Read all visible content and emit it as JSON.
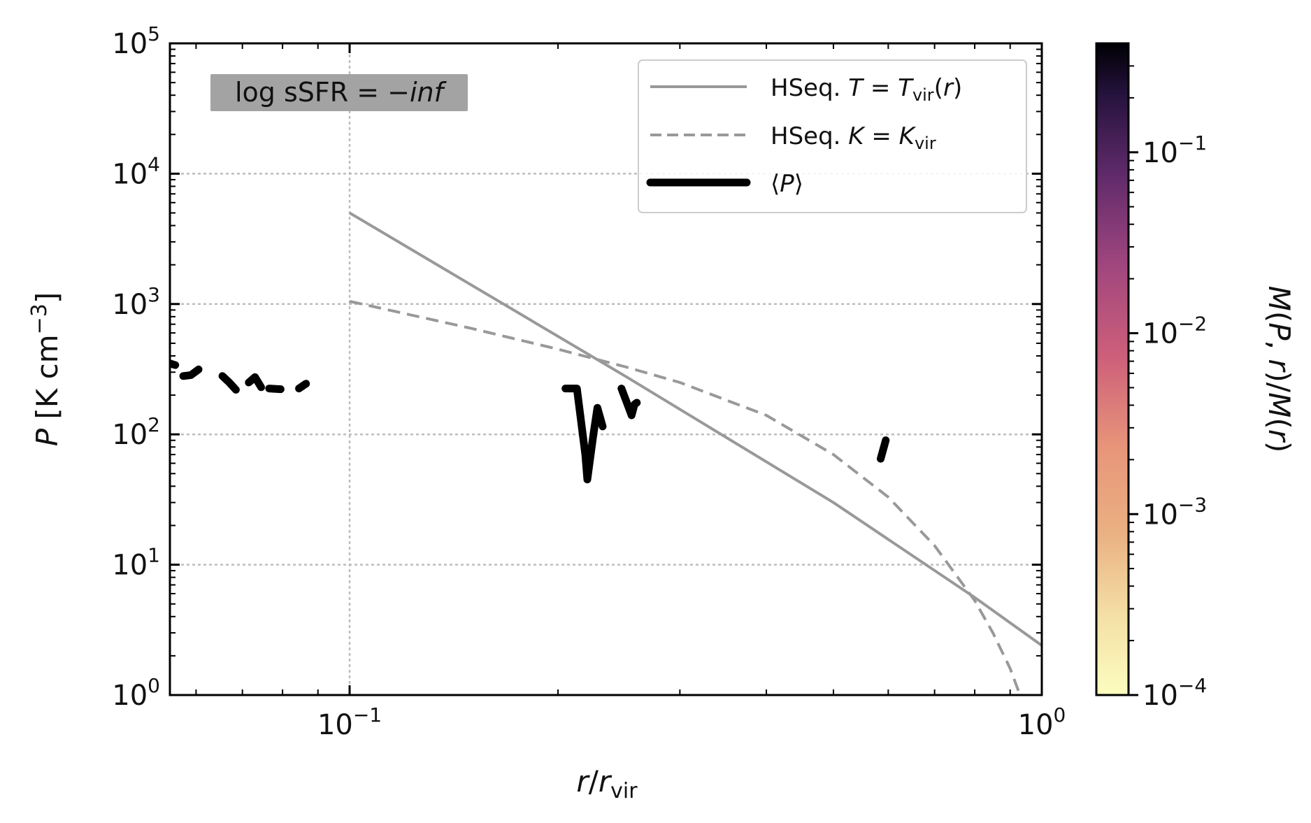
{
  "chart_data": {
    "type": "line",
    "xlabel": "r/r_vir",
    "ylabel": "P [K cm^-3]",
    "xscale": "log",
    "yscale": "log",
    "xlim": [
      0.055,
      1.0
    ],
    "ylim": [
      1,
      100000
    ],
    "x_ticks": [
      {
        "base": "10",
        "exp": "−1",
        "value": 0.1
      },
      {
        "base": "10",
        "exp": "0",
        "value": 1
      }
    ],
    "y_ticks": [
      {
        "base": "10",
        "exp": "0",
        "value": 1
      },
      {
        "base": "10",
        "exp": "1",
        "value": 10
      },
      {
        "base": "10",
        "exp": "2",
        "value": 100
      },
      {
        "base": "10",
        "exp": "3",
        "value": 1000
      },
      {
        "base": "10",
        "exp": "4",
        "value": 10000
      },
      {
        "base": "10",
        "exp": "5",
        "value": 100000
      }
    ],
    "grid": true,
    "legend_position": "top-right",
    "annotation": "log sSFR = −inf",
    "series": [
      {
        "name": "HSeq. T = T_vir(r)",
        "style": "solid",
        "color": "#999999",
        "points": [
          [
            0.1,
            5000
          ],
          [
            0.25,
            280
          ],
          [
            0.5,
            30
          ],
          [
            0.8,
            5.6
          ],
          [
            1.0,
            2.4
          ]
        ]
      },
      {
        "name": "HSeq. K = K_vir",
        "style": "dashed",
        "color": "#999999",
        "points": [
          [
            0.1,
            1050
          ],
          [
            0.15,
            650
          ],
          [
            0.2,
            450
          ],
          [
            0.25,
            330
          ],
          [
            0.3,
            250
          ],
          [
            0.4,
            140
          ],
          [
            0.5,
            70
          ],
          [
            0.6,
            33
          ],
          [
            0.7,
            14
          ],
          [
            0.8,
            5.3
          ],
          [
            0.85,
            3.0
          ],
          [
            0.9,
            1.6
          ],
          [
            0.93,
            1.0
          ]
        ]
      },
      {
        "name": "⟨P⟩",
        "style": "thick",
        "color": "#000000",
        "segments": [
          [
            [
              0.055,
              350
            ],
            [
              0.056,
              340
            ]
          ],
          [
            [
              0.0575,
              280
            ],
            [
              0.059,
              285
            ],
            [
              0.0605,
              315
            ]
          ],
          [
            [
              0.0655,
              280
            ],
            [
              0.067,
              250
            ],
            [
              0.0685,
              220
            ]
          ],
          [
            [
              0.0715,
              250
            ],
            [
              0.073,
              275
            ],
            [
              0.0745,
              230
            ]
          ],
          [
            [
              0.0765,
              225
            ],
            [
              0.0795,
              222
            ]
          ],
          [
            [
              0.0845,
              225
            ],
            [
              0.0865,
              245
            ]
          ],
          [
            [
              0.205,
              225
            ],
            [
              0.213,
              225
            ],
            [
              0.219,
              70
            ],
            [
              0.2205,
              45
            ],
            [
              0.225,
              100
            ],
            [
              0.228,
              160
            ],
            [
              0.232,
              115
            ]
          ],
          [
            [
              0.247,
              225
            ],
            [
              0.252,
              170
            ],
            [
              0.2555,
              140
            ],
            [
              0.258,
              170
            ],
            [
              0.26,
              175
            ]
          ],
          [
            [
              0.585,
              65
            ],
            [
              0.595,
              90
            ]
          ]
        ]
      }
    ],
    "colorbar": {
      "label": "M(P, r)/M(r)",
      "scale": "log",
      "range": [
        0.0001,
        0.4
      ],
      "colormap": "magma_r",
      "ticks": [
        {
          "base": "10",
          "exp": "−4",
          "value": 0.0001
        },
        {
          "base": "10",
          "exp": "−3",
          "value": 0.001
        },
        {
          "base": "10",
          "exp": "−2",
          "value": 0.01
        },
        {
          "base": "10",
          "exp": "−1",
          "value": 0.1
        }
      ]
    }
  }
}
